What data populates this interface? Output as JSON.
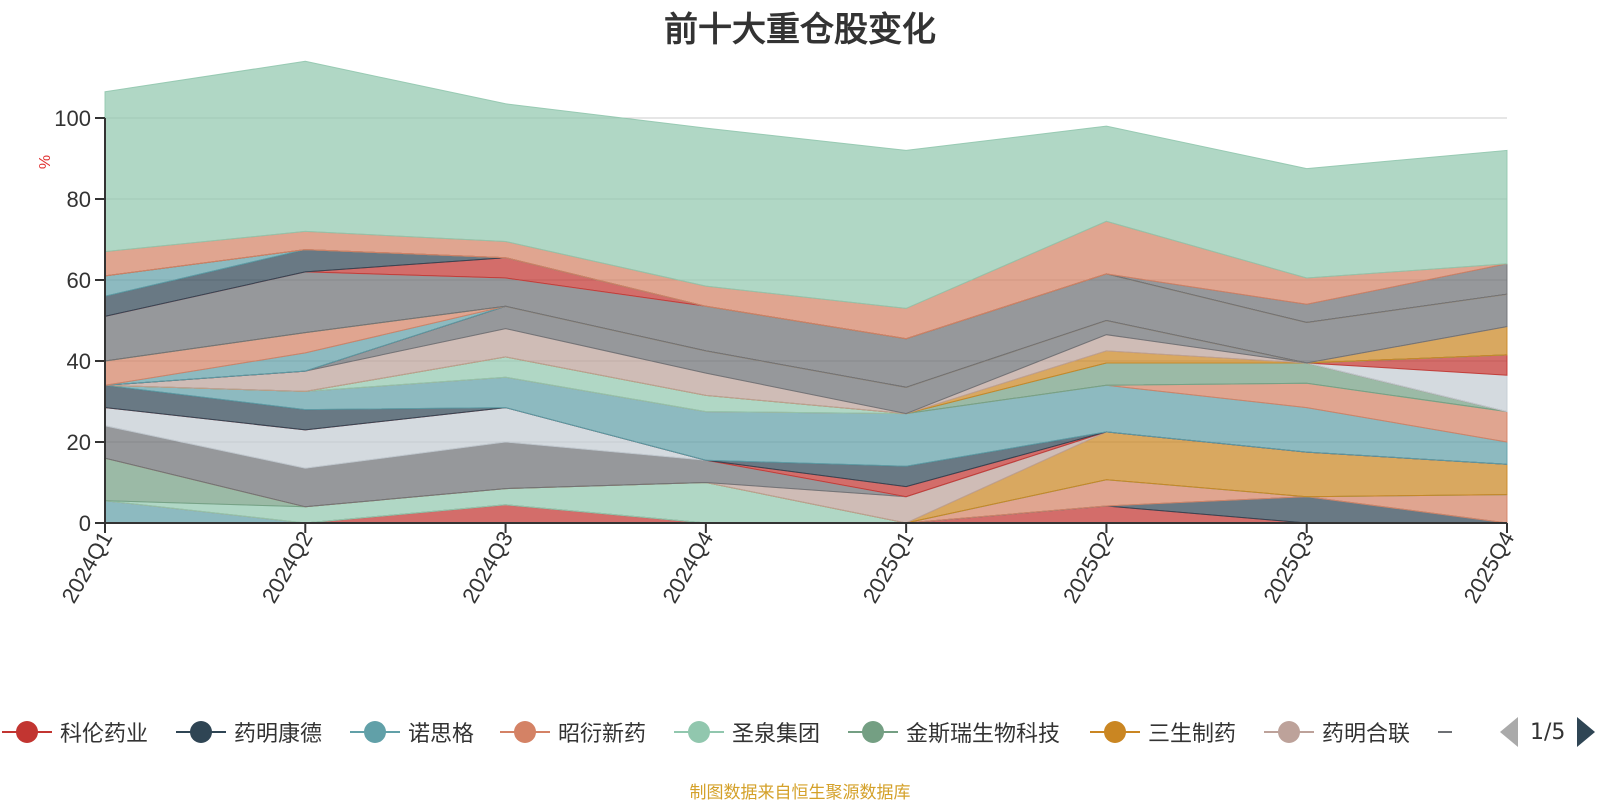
{
  "title": "前十大重仓股变化",
  "source": "制图数据来自恒生聚源数据库",
  "legend_pager": {
    "text": "1/5"
  },
  "chart_data": {
    "type": "area",
    "stacked": true,
    "title": "前十大重仓股变化",
    "ylabel": "%",
    "xlabel": "",
    "ylim": [
      0,
      100
    ],
    "yticks": [
      0,
      20,
      40,
      60,
      80,
      100
    ],
    "grid": true,
    "legend_placement": "bottom",
    "categories": [
      "2024Q1",
      "2024Q2",
      "2024Q3",
      "2024Q4",
      "2025Q1",
      "2025Q2",
      "2025Q3",
      "2025Q4"
    ],
    "legend": [
      {
        "name": "科伦药业",
        "color": "#c23531"
      },
      {
        "name": "药明康德",
        "color": "#2f4554"
      },
      {
        "name": "诺思格",
        "color": "#61a0a8"
      },
      {
        "name": "昭衍新药",
        "color": "#d48265"
      },
      {
        "name": "圣泉集团",
        "color": "#91c7ae"
      },
      {
        "name": "金斯瑞生物科技",
        "color": "#749f83"
      },
      {
        "name": "三生制药",
        "color": "#ca8622"
      },
      {
        "name": "药明合联",
        "color": "#bda29a"
      }
    ],
    "layers": [
      {
        "color": "#c23531",
        "values": [
          0,
          0,
          4.5,
          0,
          0,
          4.2,
          0,
          0
        ]
      },
      {
        "color": "#2f4554",
        "values": [
          0,
          0,
          0,
          0,
          0,
          0,
          6.5,
          0
        ]
      },
      {
        "color": "#61a0a8",
        "values": [
          5.5,
          0,
          0,
          0,
          0,
          0,
          0,
          0
        ]
      },
      {
        "color": "#d48265",
        "values": [
          0,
          0,
          0,
          0,
          0,
          6.5,
          0,
          7
        ]
      },
      {
        "color": "#91c7ae",
        "values": [
          0,
          4,
          4,
          10,
          0,
          0,
          0,
          0
        ]
      },
      {
        "color": "#749f83",
        "values": [
          10.5,
          0,
          0,
          0,
          0,
          0,
          0,
          0
        ]
      },
      {
        "color": "#ca8622",
        "values": [
          0,
          0,
          0,
          0,
          0,
          11.8,
          11,
          7.5
        ]
      },
      {
        "color": "#bda29a",
        "values": [
          0,
          0,
          0,
          0,
          6.5,
          0,
          0,
          0
        ]
      },
      {
        "color": "#6e7074",
        "values": [
          8,
          9.5,
          11.5,
          5.5,
          0,
          0,
          0,
          0
        ]
      },
      {
        "color": "#c4ccd3",
        "values": [
          4.5,
          9.5,
          8.5,
          0,
          0,
          0,
          0,
          0
        ]
      },
      {
        "color": "#c23531",
        "values": [
          0,
          0,
          0,
          0,
          2.5,
          0,
          0,
          0
        ]
      },
      {
        "color": "#2f4554",
        "values": [
          5.5,
          5,
          0,
          0,
          5,
          0,
          0,
          0
        ]
      },
      {
        "color": "#61a0a8",
        "values": [
          0,
          4.5,
          7.5,
          12,
          13,
          11.5,
          11,
          5.5
        ]
      },
      {
        "color": "#d48265",
        "values": [
          0,
          0,
          0,
          0,
          0,
          0,
          6,
          7.5
        ]
      },
      {
        "color": "#91c7ae",
        "values": [
          0,
          0,
          5,
          4,
          0,
          0,
          0,
          0
        ]
      },
      {
        "color": "#749f83",
        "values": [
          0,
          0,
          0,
          0,
          0,
          5.5,
          5,
          0
        ]
      },
      {
        "color": "#ca8622",
        "values": [
          0,
          0,
          0,
          0,
          0,
          3,
          0,
          0
        ]
      },
      {
        "color": "#bda29a",
        "values": [
          0,
          5,
          7,
          5.5,
          0,
          4,
          0,
          0
        ]
      },
      {
        "color": "#6e7074",
        "values": [
          0,
          0,
          5.5,
          5.5,
          6.5,
          3.5,
          0,
          0
        ]
      },
      {
        "color": "#c4ccd3",
        "values": [
          0,
          0,
          0,
          0,
          0,
          0,
          0,
          9
        ]
      },
      {
        "color": "#c23531",
        "values": [
          0,
          0,
          0,
          0,
          0,
          0,
          0,
          5
        ]
      },
      {
        "color": "#2f4554",
        "values": [
          0,
          0,
          0,
          0,
          0,
          0,
          0,
          0
        ]
      },
      {
        "color": "#61a0a8",
        "values": [
          0,
          4.5,
          0,
          0,
          0,
          0,
          0,
          0
        ]
      },
      {
        "color": "#d48265",
        "values": [
          6,
          5,
          0,
          0,
          0,
          0,
          0,
          0
        ]
      },
      {
        "color": "#91c7ae",
        "values": [
          0,
          0,
          0,
          0,
          0,
          0,
          0,
          0
        ]
      },
      {
        "color": "#749f83",
        "values": [
          0,
          0,
          0,
          0,
          0,
          0,
          0,
          0
        ]
      },
      {
        "color": "#ca8622",
        "values": [
          0,
          0,
          0,
          0,
          0,
          0,
          0,
          7
        ]
      },
      {
        "color": "#bda29a",
        "values": [
          0,
          0,
          0,
          0,
          0,
          0,
          0,
          0
        ]
      },
      {
        "color": "#6e7074",
        "values": [
          11,
          15,
          7,
          11,
          12,
          11.5,
          10,
          8
        ]
      },
      {
        "color": "#c4ccd3",
        "values": [
          0,
          0,
          0,
          0,
          0,
          0,
          0,
          0
        ]
      },
      {
        "color": "#c23531",
        "values": [
          0,
          0,
          5,
          0,
          0,
          0,
          0,
          0
        ]
      },
      {
        "color": "#2f4554",
        "values": [
          5,
          5.5,
          0,
          0,
          0,
          0,
          0,
          0
        ]
      },
      {
        "color": "#61a0a8",
        "values": [
          5,
          0,
          0,
          0,
          0,
          0,
          0,
          0
        ]
      },
      {
        "color": "#d48265",
        "values": [
          0,
          0,
          0,
          0,
          0,
          0,
          0,
          0
        ]
      },
      {
        "color": "#91c7ae",
        "values": [
          0,
          0,
          0,
          0,
          0,
          0,
          0,
          0
        ]
      },
      {
        "color": "#749f83",
        "values": [
          0,
          0,
          0,
          0,
          0,
          0,
          0,
          0
        ]
      },
      {
        "color": "#ca8622",
        "values": [
          0,
          0,
          0,
          0,
          0,
          0,
          0,
          0
        ]
      },
      {
        "color": "#bda29a",
        "values": [
          0,
          0,
          0,
          0,
          0,
          0,
          0,
          0
        ]
      },
      {
        "color": "#6e7074",
        "values": [
          0,
          0,
          0,
          0,
          0,
          0,
          4.5,
          7.5
        ]
      },
      {
        "color": "#d48265",
        "values": [
          6,
          4.5,
          4,
          5,
          7.5,
          13,
          6.5,
          0
        ]
      },
      {
        "color": "#91c7ae",
        "values": [
          39.5,
          42,
          34,
          39,
          39,
          23.5,
          27,
          28
        ]
      }
    ]
  }
}
